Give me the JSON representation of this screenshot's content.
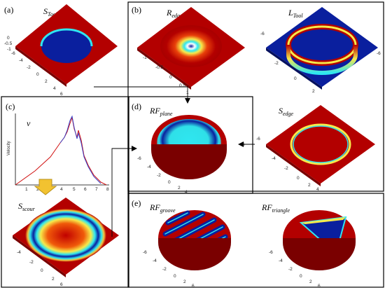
{
  "panels": {
    "a": {
      "label": "(a)",
      "title_main": "S",
      "title_sub": "Tool",
      "ticks_left": [
        "-6",
        "-4",
        "-2",
        "0",
        "2",
        "4",
        "6"
      ],
      "ticks_right": [
        "0",
        "-0.5",
        "-1"
      ]
    },
    "b": {
      "label": "(b)",
      "left_title_main": "R",
      "left_title_sub": "edge",
      "right_title_main": "L",
      "right_title_sub": "Tool",
      "bottom_title_main": "S",
      "bottom_title_sub": "edge",
      "ticks": [
        "-1",
        "-0.5",
        "0",
        "0.5",
        "1"
      ],
      "ticks_right": [
        "-6",
        "-4",
        "-2",
        "0",
        "2",
        "4",
        "6"
      ]
    },
    "c": {
      "label": "(c)",
      "symbol": "v",
      "ylabel": "Velocity",
      "xticks": [
        "1",
        "2",
        "3",
        "4",
        "5",
        "6",
        "7",
        "8"
      ],
      "bottom_title_main": "S",
      "bottom_title_sub": "scour"
    },
    "d": {
      "label": "(d)",
      "title_main": "RF",
      "title_sub": "plane",
      "ticks": [
        "-6",
        "-4",
        "-2",
        "0",
        "2",
        "4",
        "6"
      ]
    },
    "e": {
      "label": "(e)",
      "left_title_main": "RF",
      "left_title_sub": "groove",
      "right_title_main": "RF",
      "right_title_sub": "triangle",
      "ticks": [
        "-6",
        "-4",
        "-2",
        "0",
        "2",
        "4",
        "6"
      ]
    }
  },
  "colors": {
    "red": "#b30000",
    "blue": "#0a1f9e",
    "cyan": "#2fe6f0",
    "yellow": "#f2c230",
    "arrow": "#c89a1e"
  }
}
